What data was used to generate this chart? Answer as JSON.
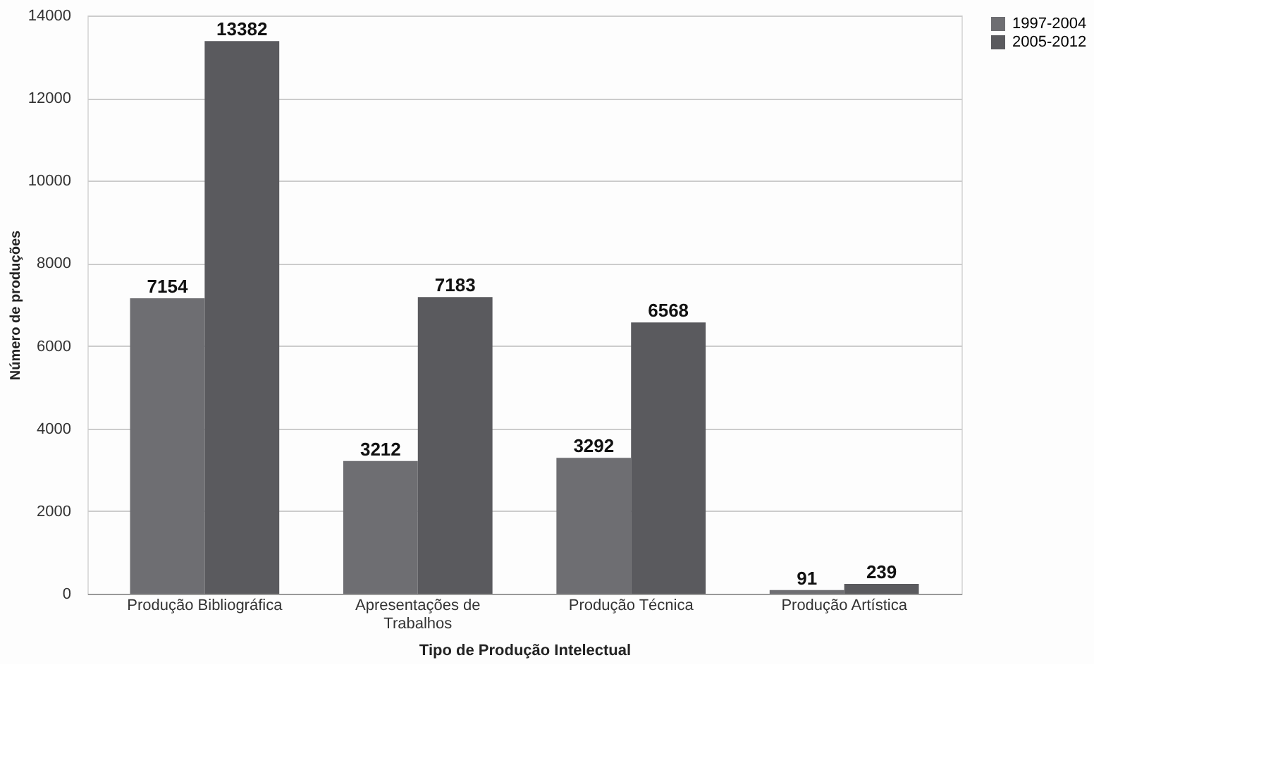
{
  "chart_data": {
    "type": "bar",
    "xlabel": "Tipo de Produção Intelectual",
    "ylabel": "Número de produções",
    "categories": [
      "Produção Bibliográfica",
      "Apresentações de Trabalhos",
      "Produção Técnica",
      "Produção Artística"
    ],
    "series": [
      {
        "name": "1997-2004",
        "color": "#6e6e72",
        "values": [
          7154,
          3212,
          3292,
          91
        ]
      },
      {
        "name": "2005-2012",
        "color": "#5a5a5e",
        "values": [
          13382,
          7183,
          6568,
          239
        ]
      }
    ],
    "ylim": [
      0,
      14000
    ],
    "yticks": [
      0,
      2000,
      4000,
      6000,
      8000,
      10000,
      12000,
      14000
    ],
    "grid": "y",
    "legend": "right",
    "data_labels": true
  }
}
